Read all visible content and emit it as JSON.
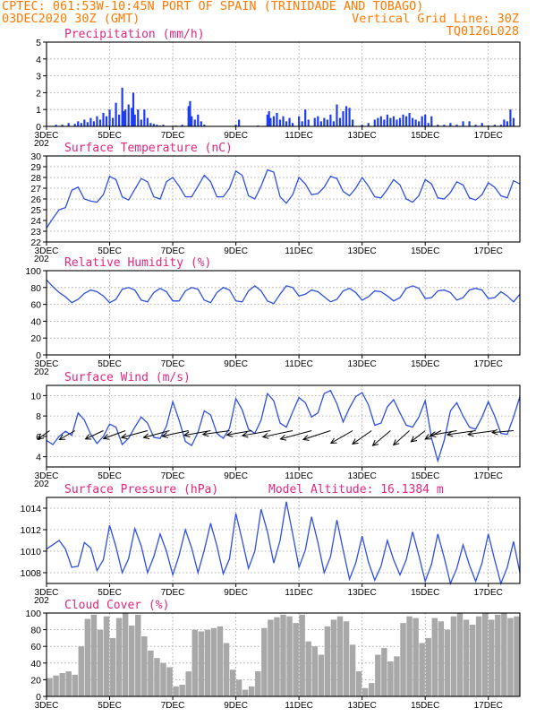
{
  "header": {
    "line1": "CPTEC:   061:53W-10:45N   PORT OF SPAIN (TRINIDADE AND TOBAGO)",
    "line2_left": "03DEC2020 30Z (GMT)",
    "line2_right": "Vertical Grid Line: 30Z",
    "line3_right": "TQ0126L028",
    "year_stub": "202"
  },
  "colors": {
    "header": "#ff7a00",
    "panel_title": "#e0267f",
    "precip_bar": "#1f3df0",
    "line_series": "#2e4fe3",
    "cloud_bar": "#a8a8a8",
    "wind_arrow": "#000000"
  },
  "x_axis": {
    "start": "03DEC",
    "end": "18DEC",
    "day_range": [
      3,
      18
    ],
    "tick_days": [
      3,
      5,
      7,
      9,
      11,
      13,
      15,
      17
    ],
    "tick_labels": [
      "3DEC",
      "5DEC",
      "7DEC",
      "9DEC",
      "11DEC",
      "13DEC",
      "15DEC",
      "17DEC"
    ]
  },
  "chart_data": [
    {
      "id": "precipitation",
      "type": "bar",
      "title": "Precipitation (mm/h)",
      "ylim": [
        0,
        5
      ],
      "yticks": [
        0,
        1,
        2,
        3,
        4,
        5
      ],
      "grid": true,
      "x": [
        3.3,
        3.5,
        3.7,
        3.9,
        4.0,
        4.1,
        4.2,
        4.3,
        4.4,
        4.5,
        4.6,
        4.7,
        4.8,
        4.9,
        5.0,
        5.1,
        5.2,
        5.3,
        5.4,
        5.45,
        5.5,
        5.6,
        5.7,
        5.75,
        5.8,
        5.9,
        6.0,
        6.1,
        6.2,
        6.3,
        6.4,
        6.5,
        6.6,
        6.7,
        7.1,
        7.3,
        7.5,
        7.55,
        7.6,
        7.7,
        7.8,
        7.9,
        8.0,
        9.0,
        9.1,
        9.7,
        10.0,
        10.05,
        10.1,
        10.2,
        10.3,
        10.4,
        10.5,
        10.6,
        10.7,
        10.8,
        11.0,
        11.1,
        11.2,
        11.3,
        11.5,
        11.6,
        11.7,
        11.8,
        11.9,
        12.0,
        12.1,
        12.2,
        12.3,
        12.4,
        12.5,
        12.6,
        12.7,
        13.0,
        13.2,
        13.4,
        13.5,
        13.6,
        13.7,
        13.8,
        13.9,
        14.0,
        14.1,
        14.2,
        14.3,
        14.4,
        14.5,
        14.6,
        14.7,
        14.8,
        14.9,
        15.0,
        15.1,
        15.2,
        15.4,
        15.6,
        15.8,
        16.0,
        16.2,
        16.4,
        16.6,
        16.8,
        17.0,
        17.2,
        17.4,
        17.5,
        17.6,
        17.7,
        17.8
      ],
      "values": [
        0.1,
        0.1,
        0.2,
        0.15,
        0.3,
        0.2,
        0.4,
        0.25,
        0.5,
        0.3,
        0.6,
        0.4,
        0.8,
        0.6,
        1.0,
        0.5,
        1.4,
        0.7,
        2.3,
        0.9,
        1.0,
        1.3,
        1.1,
        2.0,
        0.7,
        1.0,
        0.4,
        1.0,
        0.5,
        0.2,
        0.15,
        0.1,
        0.05,
        0.1,
        0.05,
        0.1,
        1.2,
        1.5,
        0.6,
        0.4,
        0.7,
        0.3,
        0.1,
        0.1,
        0.4,
        0.05,
        0.7,
        0.9,
        0.5,
        0.6,
        0.8,
        0.4,
        0.6,
        0.3,
        0.5,
        0.2,
        0.6,
        0.3,
        1.0,
        0.4,
        0.5,
        0.6,
        0.3,
        0.5,
        0.4,
        0.7,
        0.3,
        1.3,
        0.5,
        0.9,
        1.2,
        1.1,
        0.4,
        0.1,
        0.2,
        0.4,
        0.5,
        0.6,
        0.4,
        0.7,
        0.5,
        0.6,
        0.4,
        0.5,
        0.7,
        0.6,
        0.8,
        0.5,
        0.4,
        0.3,
        0.6,
        0.7,
        0.2,
        0.6,
        0.1,
        0.1,
        0.2,
        0.1,
        0.3,
        0.3,
        0.1,
        0.2,
        0.05,
        0.1,
        0.1,
        0.4,
        0.3,
        1.0,
        0.5
      ]
    },
    {
      "id": "surface-temperature",
      "type": "line",
      "title": "Surface Temperature (nC)",
      "ylim": [
        22,
        30
      ],
      "yticks": [
        22,
        23,
        24,
        25,
        26,
        27,
        28,
        29,
        30
      ],
      "grid": true,
      "x": [
        3.0,
        3.2,
        3.4,
        3.6,
        3.8,
        4.0,
        4.2,
        4.4,
        4.6,
        4.8,
        5.0,
        5.2,
        5.4,
        5.6,
        5.8,
        6.0,
        6.2,
        6.4,
        6.6,
        6.8,
        7.0,
        7.2,
        7.4,
        7.6,
        7.8,
        8.0,
        8.2,
        8.4,
        8.6,
        8.8,
        9.0,
        9.2,
        9.4,
        9.6,
        9.8,
        10.0,
        10.2,
        10.4,
        10.6,
        10.8,
        11.0,
        11.2,
        11.4,
        11.6,
        11.8,
        12.0,
        12.2,
        12.4,
        12.6,
        12.8,
        13.0,
        13.2,
        13.4,
        13.6,
        13.8,
        14.0,
        14.2,
        14.4,
        14.6,
        14.8,
        15.0,
        15.2,
        15.4,
        15.6,
        15.8,
        16.0,
        16.2,
        16.4,
        16.6,
        16.8,
        17.0,
        17.2,
        17.4,
        17.6,
        17.8,
        18.0
      ],
      "values": [
        23.3,
        24.2,
        25.0,
        25.2,
        26.8,
        27.1,
        26.0,
        25.8,
        25.7,
        26.4,
        28.1,
        27.8,
        26.2,
        25.9,
        26.9,
        27.9,
        27.6,
        26.2,
        26.0,
        27.6,
        28.0,
        27.2,
        26.2,
        26.2,
        27.2,
        28.2,
        27.6,
        26.2,
        26.2,
        27.0,
        28.6,
        28.2,
        26.3,
        26.0,
        27.2,
        28.7,
        28.5,
        26.2,
        25.6,
        26.4,
        28.0,
        27.4,
        26.4,
        26.5,
        27.1,
        28.1,
        27.9,
        26.7,
        26.3,
        27.0,
        28.0,
        27.2,
        26.2,
        26.1,
        26.9,
        27.8,
        27.3,
        26.0,
        25.7,
        26.3,
        27.8,
        27.4,
        26.1,
        26.0,
        26.6,
        27.6,
        27.3,
        26.1,
        25.9,
        26.4,
        27.5,
        27.1,
        26.3,
        26.1,
        27.7,
        27.4
      ]
    },
    {
      "id": "relative-humidity",
      "type": "line",
      "title": "Relative Humidity (%)",
      "ylim": [
        0,
        100
      ],
      "yticks": [
        0,
        20,
        40,
        60,
        80,
        100
      ],
      "grid": true,
      "x": [
        3.0,
        3.2,
        3.4,
        3.6,
        3.8,
        4.0,
        4.2,
        4.4,
        4.6,
        4.8,
        5.0,
        5.2,
        5.4,
        5.6,
        5.8,
        6.0,
        6.2,
        6.4,
        6.6,
        6.8,
        7.0,
        7.2,
        7.4,
        7.6,
        7.8,
        8.0,
        8.2,
        8.4,
        8.6,
        8.8,
        9.0,
        9.2,
        9.4,
        9.6,
        9.8,
        10.0,
        10.2,
        10.4,
        10.6,
        10.8,
        11.0,
        11.2,
        11.4,
        11.6,
        11.8,
        12.0,
        12.2,
        12.4,
        12.6,
        12.8,
        13.0,
        13.2,
        13.4,
        13.6,
        13.8,
        14.0,
        14.2,
        14.4,
        14.6,
        14.8,
        15.0,
        15.2,
        15.4,
        15.6,
        15.8,
        16.0,
        16.2,
        16.4,
        16.6,
        16.8,
        17.0,
        17.2,
        17.4,
        17.6,
        17.8,
        18.0
      ],
      "values": [
        89,
        81,
        74,
        69,
        62,
        66,
        73,
        77,
        75,
        70,
        62,
        66,
        78,
        80,
        77,
        65,
        63,
        74,
        79,
        75,
        64,
        64,
        76,
        80,
        78,
        65,
        62,
        74,
        80,
        77,
        64,
        63,
        76,
        82,
        76,
        64,
        61,
        72,
        82,
        80,
        70,
        72,
        77,
        75,
        69,
        63,
        66,
        76,
        79,
        74,
        65,
        69,
        76,
        75,
        70,
        64,
        68,
        79,
        82,
        79,
        67,
        68,
        76,
        77,
        74,
        65,
        68,
        77,
        79,
        77,
        67,
        68,
        75,
        70,
        63,
        72
      ]
    },
    {
      "id": "surface-wind",
      "type": "line",
      "title": "Surface Wind (m/s)",
      "ylim": [
        3,
        11
      ],
      "yticks": [
        4,
        6,
        8,
        10
      ],
      "grid": true,
      "x": [
        3.0,
        3.2,
        3.4,
        3.6,
        3.8,
        4.0,
        4.2,
        4.4,
        4.6,
        4.8,
        5.0,
        5.2,
        5.4,
        5.6,
        5.8,
        6.0,
        6.2,
        6.4,
        6.6,
        6.8,
        7.0,
        7.2,
        7.4,
        7.6,
        7.8,
        8.0,
        8.2,
        8.4,
        8.6,
        8.8,
        9.0,
        9.2,
        9.4,
        9.6,
        9.8,
        10.0,
        10.2,
        10.4,
        10.6,
        10.8,
        11.0,
        11.2,
        11.4,
        11.6,
        11.8,
        12.0,
        12.2,
        12.4,
        12.6,
        12.8,
        13.0,
        13.2,
        13.4,
        13.6,
        13.8,
        14.0,
        14.2,
        14.4,
        14.6,
        14.8,
        15.0,
        15.2,
        15.4,
        15.6,
        15.8,
        16.0,
        16.2,
        16.4,
        16.6,
        16.8,
        17.0,
        17.2,
        17.4,
        17.6,
        17.8,
        18.0
      ],
      "values": [
        5.6,
        5.2,
        6.0,
        6.5,
        6.1,
        8.3,
        7.6,
        6.2,
        5.3,
        6.0,
        7.2,
        6.9,
        5.2,
        5.8,
        6.9,
        7.9,
        7.3,
        5.9,
        5.8,
        7.0,
        9.4,
        7.6,
        5.5,
        5.1,
        6.4,
        8.5,
        8.1,
        6.3,
        5.8,
        6.8,
        9.7,
        8.6,
        6.7,
        6.3,
        7.6,
        10.2,
        9.5,
        7.3,
        6.9,
        8.4,
        9.8,
        9.3,
        7.9,
        8.3,
        10.2,
        10.5,
        9.2,
        7.4,
        8.8,
        9.9,
        10.3,
        9.1,
        7.1,
        7.3,
        8.9,
        9.6,
        8.3,
        7.1,
        6.9,
        7.9,
        9.5,
        5.8,
        3.6,
        5.6,
        8.5,
        9.3,
        8.0,
        6.9,
        6.7,
        7.9,
        9.4,
        8.0,
        6.3,
        6.2,
        7.9,
        9.9
      ],
      "arrows": {
        "x": [
          3.1,
          3.9,
          4.8,
          5.5,
          6.2,
          6.9,
          7.5,
          8.2,
          8.8,
          9.5,
          10.1,
          10.8,
          11.4,
          12.0,
          12.7,
          13.3,
          13.9,
          14.5,
          15.0,
          15.5,
          16.0,
          16.6,
          17.2,
          17.8
        ],
        "angle_deg": [
          35,
          30,
          25,
          20,
          15,
          15,
          12,
          10,
          8,
          10,
          10,
          12,
          15,
          18,
          30,
          35,
          40,
          42,
          38,
          28,
          10,
          8,
          8,
          5
        ],
        "length": [
          16,
          20,
          22,
          26,
          30,
          30,
          30,
          30,
          30,
          28,
          32,
          34,
          36,
          32,
          28,
          26,
          26,
          24,
          20,
          20,
          30,
          32,
          30,
          24
        ]
      }
    },
    {
      "id": "surface-pressure",
      "type": "line",
      "title": "Surface Pressure (hPa)",
      "annotation": "Model Altitude: 16.1384 m",
      "ylim": [
        1007,
        1015
      ],
      "yticks": [
        1008,
        1010,
        1012,
        1014
      ],
      "grid": true,
      "x": [
        3.0,
        3.2,
        3.4,
        3.6,
        3.8,
        4.0,
        4.2,
        4.4,
        4.6,
        4.8,
        5.0,
        5.2,
        5.4,
        5.6,
        5.8,
        6.0,
        6.2,
        6.4,
        6.6,
        6.8,
        7.0,
        7.2,
        7.4,
        7.6,
        7.8,
        8.0,
        8.2,
        8.4,
        8.6,
        8.8,
        9.0,
        9.2,
        9.4,
        9.6,
        9.8,
        10.0,
        10.2,
        10.4,
        10.6,
        10.8,
        11.0,
        11.2,
        11.4,
        11.6,
        11.8,
        12.0,
        12.2,
        12.4,
        12.6,
        12.8,
        13.0,
        13.2,
        13.4,
        13.6,
        13.8,
        14.0,
        14.2,
        14.4,
        14.6,
        14.8,
        15.0,
        15.2,
        15.4,
        15.6,
        15.8,
        16.0,
        16.2,
        16.4,
        16.6,
        16.8,
        17.0,
        17.2,
        17.4,
        17.6,
        17.8,
        18.0
      ],
      "values": [
        1010.2,
        1010.6,
        1011.0,
        1010.2,
        1008.5,
        1008.6,
        1010.8,
        1010.3,
        1008.2,
        1009.2,
        1012.4,
        1010.4,
        1008.0,
        1009.3,
        1012.1,
        1010.5,
        1008.0,
        1009.5,
        1011.6,
        1010.0,
        1007.8,
        1009.6,
        1012.0,
        1010.3,
        1008.0,
        1010.1,
        1012.6,
        1010.5,
        1007.9,
        1009.3,
        1013.5,
        1011.0,
        1008.4,
        1010.0,
        1013.9,
        1011.8,
        1008.9,
        1011.0,
        1014.6,
        1011.6,
        1008.5,
        1010.1,
        1013.2,
        1010.8,
        1008.0,
        1009.5,
        1012.9,
        1010.1,
        1007.4,
        1008.9,
        1011.4,
        1009.0,
        1007.3,
        1008.6,
        1011.0,
        1009.2,
        1007.8,
        1009.2,
        1011.8,
        1009.6,
        1007.2,
        1008.8,
        1011.6,
        1009.4,
        1007.0,
        1008.4,
        1010.6,
        1008.7,
        1007.2,
        1008.9,
        1011.6,
        1009.2,
        1007.0,
        1008.5,
        1010.9,
        1008.0
      ]
    },
    {
      "id": "cloud-cover",
      "type": "bar",
      "title": "Cloud Cover (%)",
      "ylim": [
        0,
        100
      ],
      "yticks": [
        0,
        20,
        40,
        60,
        80,
        100
      ],
      "grid": true,
      "x": [
        3.1,
        3.3,
        3.5,
        3.7,
        3.9,
        4.1,
        4.3,
        4.5,
        4.7,
        4.9,
        5.1,
        5.3,
        5.5,
        5.7,
        5.9,
        6.1,
        6.3,
        6.5,
        6.7,
        6.9,
        7.1,
        7.3,
        7.5,
        7.7,
        7.9,
        8.1,
        8.3,
        8.5,
        8.7,
        8.9,
        9.1,
        9.3,
        9.5,
        9.7,
        9.9,
        10.1,
        10.3,
        10.5,
        10.7,
        10.9,
        11.1,
        11.3,
        11.5,
        11.7,
        11.9,
        12.1,
        12.3,
        12.5,
        12.7,
        12.9,
        13.1,
        13.3,
        13.5,
        13.7,
        13.9,
        14.1,
        14.3,
        14.5,
        14.7,
        14.9,
        15.1,
        15.3,
        15.5,
        15.7,
        15.9,
        16.1,
        16.3,
        16.5,
        16.7,
        16.9,
        17.1,
        17.3,
        17.5,
        17.7,
        17.9
      ],
      "values": [
        22,
        25,
        28,
        30,
        26,
        60,
        93,
        98,
        80,
        96,
        70,
        94,
        100,
        85,
        98,
        72,
        55,
        46,
        40,
        35,
        12,
        14,
        30,
        80,
        78,
        80,
        82,
        84,
        64,
        32,
        20,
        8,
        12,
        30,
        82,
        92,
        95,
        98,
        96,
        88,
        98,
        66,
        60,
        50,
        84,
        92,
        96,
        90,
        62,
        30,
        10,
        16,
        50,
        58,
        42,
        48,
        88,
        96,
        94,
        64,
        70,
        94,
        90,
        80,
        96,
        100,
        92,
        86,
        96,
        100,
        92,
        98,
        100,
        94,
        96
      ]
    }
  ]
}
